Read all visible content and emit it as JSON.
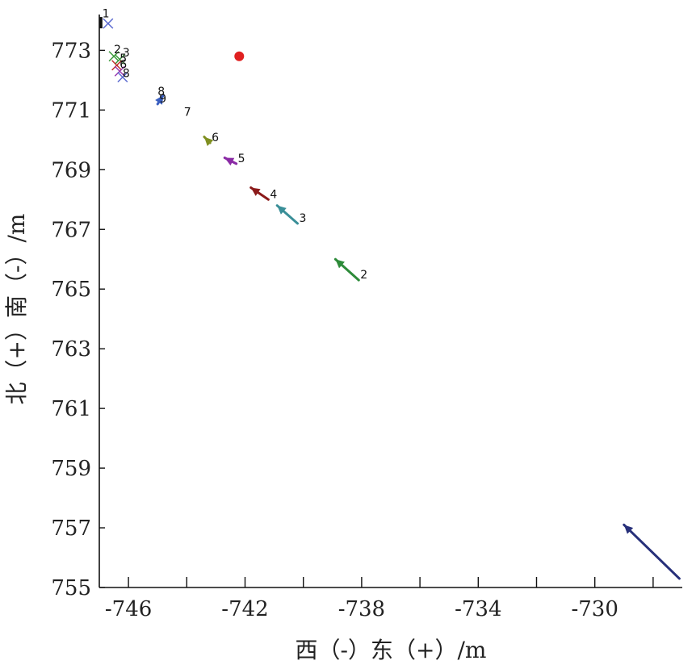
{
  "chart_data": {
    "type": "scatter",
    "title": "",
    "xlabel": "西（-）东（+）/m",
    "ylabel": "北（+）南（-）/m",
    "xlim": [
      -747,
      -727
    ],
    "ylim": [
      755,
      774.2
    ],
    "xticks": [
      -746,
      -742,
      -738,
      -734,
      -730
    ],
    "xminor": [
      -744,
      -740,
      -736,
      -732,
      -728
    ],
    "yticks": [
      755,
      757,
      759,
      761,
      763,
      765,
      767,
      769,
      771,
      773
    ],
    "grid": false,
    "legend": "none",
    "reference_point": {
      "x": -742.2,
      "y": 772.8,
      "color": "#e02020"
    },
    "arrows": [
      {
        "label": "2",
        "x1": -738.1,
        "y1": 765.3,
        "x2": -738.9,
        "y2": 766.0,
        "color": "#2e8b3a"
      },
      {
        "label": "3",
        "x1": -740.2,
        "y1": 767.2,
        "x2": -740.9,
        "y2": 767.8,
        "color": "#3a8f98"
      },
      {
        "label": "4",
        "x1": -741.2,
        "y1": 768.0,
        "x2": -741.8,
        "y2": 768.4,
        "color": "#8b1a1a"
      },
      {
        "label": "5",
        "x1": -742.3,
        "y1": 769.2,
        "x2": -742.7,
        "y2": 769.4,
        "color": "#8a2aa5"
      },
      {
        "label": "6",
        "x1": -743.2,
        "y1": 769.9,
        "x2": -743.4,
        "y2": 770.1,
        "color": "#7f8f20"
      },
      {
        "label": "",
        "x1": -727.1,
        "y1": 755.3,
        "x2": -729.0,
        "y2": 757.1,
        "color": "#27307a"
      },
      {
        "label": "9",
        "x1": -745.0,
        "y1": 771.2,
        "x2": -744.8,
        "y2": 771.5,
        "color": "#3a5fc0"
      }
    ],
    "point_labels": [
      {
        "label": "7",
        "x": -744.1,
        "y": 770.8
      },
      {
        "label": "8",
        "x": -745.0,
        "y": 771.5
      },
      {
        "label": "1",
        "x": -746.9,
        "y": 774.1
      },
      {
        "label": "2",
        "x": -746.5,
        "y": 772.9
      },
      {
        "label": "3",
        "x": -746.2,
        "y": 772.8
      },
      {
        "label": "5",
        "x": -746.3,
        "y": 772.6
      },
      {
        "label": "6",
        "x": -746.3,
        "y": 772.4
      },
      {
        "label": "8",
        "x": -746.2,
        "y": 772.1
      }
    ],
    "cross_markers": [
      {
        "x": -746.7,
        "y": 773.9,
        "color": "#5b6ad0"
      },
      {
        "x": -746.5,
        "y": 772.8,
        "color": "#3a9a3a"
      },
      {
        "x": -746.3,
        "y": 772.7,
        "color": "#3a9a3a"
      },
      {
        "x": -746.4,
        "y": 772.5,
        "color": "#c0302a"
      },
      {
        "x": -746.3,
        "y": 772.3,
        "color": "#9a3ab0"
      },
      {
        "x": -746.2,
        "y": 772.1,
        "color": "#5b6ad0"
      }
    ],
    "edge_markers": [
      {
        "x": -746.95,
        "y": 773.9,
        "color": "#111111"
      }
    ]
  }
}
